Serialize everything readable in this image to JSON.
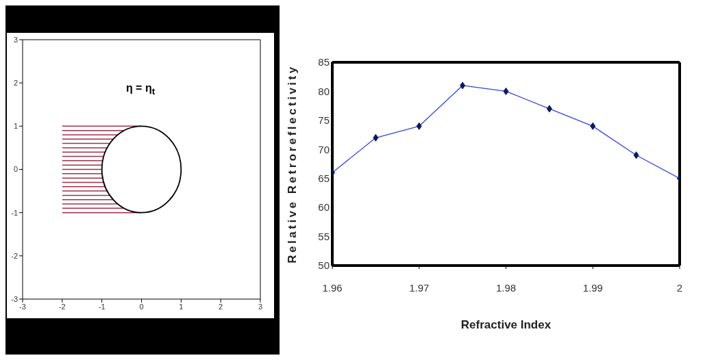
{
  "chart_data": [
    {
      "type": "line",
      "xlim": [
        -3,
        3
      ],
      "ylim": [
        -3,
        3
      ],
      "xticks": [
        -3,
        -2,
        -1,
        0,
        1,
        2,
        3
      ],
      "yticks": [
        -3,
        -2,
        -1,
        0,
        1,
        2,
        3
      ],
      "marker": "none",
      "annotations": [
        "η = η$_{t}$"
      ],
      "series": [
        {
          "color": "#a0304a",
          "x": [
            -2,
            0
          ],
          "values": [
            1,
            1
          ]
        },
        {
          "color": "#a0304a",
          "x": [
            -2,
            -0.44
          ],
          "values": [
            0.9,
            0.9
          ]
        },
        {
          "color": "#a0304a",
          "x": [
            -2,
            -0.6
          ],
          "values": [
            0.8,
            0.8
          ]
        },
        {
          "color": "#a0304a",
          "x": [
            -2,
            -0.71
          ],
          "values": [
            0.7,
            0.7
          ]
        },
        {
          "color": "#a0304a",
          "x": [
            -2,
            -0.8
          ],
          "values": [
            0.6,
            0.6
          ]
        },
        {
          "color": "#a0304a",
          "x": [
            -2,
            -0.87
          ],
          "values": [
            0.5,
            0.5
          ]
        },
        {
          "color": "#a0304a",
          "x": [
            -2,
            -0.92
          ],
          "values": [
            0.4,
            0.4
          ]
        },
        {
          "color": "#a0304a",
          "x": [
            -2,
            -0.95
          ],
          "values": [
            0.3,
            0.3
          ]
        },
        {
          "color": "#a0304a",
          "x": [
            -2,
            -0.98
          ],
          "values": [
            0.2,
            0.2
          ]
        },
        {
          "color": "#a0304a",
          "x": [
            -2,
            -0.99
          ],
          "values": [
            0.1,
            0.1
          ]
        },
        {
          "color": "#a0304a",
          "x": [
            -2,
            -1
          ],
          "values": [
            0,
            0
          ]
        },
        {
          "color": "#a0304a",
          "x": [
            -2,
            -0.99
          ],
          "values": [
            -0.1,
            -0.1
          ]
        },
        {
          "color": "#a0304a",
          "x": [
            -2,
            -0.98
          ],
          "values": [
            -0.2,
            -0.2
          ]
        },
        {
          "color": "#a0304a",
          "x": [
            -2,
            -0.95
          ],
          "values": [
            -0.3,
            -0.3
          ]
        },
        {
          "color": "#a0304a",
          "x": [
            -2,
            -0.92
          ],
          "values": [
            -0.4,
            -0.4
          ]
        },
        {
          "color": "#a0304a",
          "x": [
            -2,
            -0.87
          ],
          "values": [
            -0.5,
            -0.5
          ]
        },
        {
          "color": "#a0304a",
          "x": [
            -2,
            -0.8
          ],
          "values": [
            -0.6,
            -0.6
          ]
        },
        {
          "color": "#a0304a",
          "x": [
            -2,
            -0.71
          ],
          "values": [
            -0.7,
            -0.7
          ]
        },
        {
          "color": "#a0304a",
          "x": [
            -2,
            -0.6
          ],
          "values": [
            -0.8,
            -0.8
          ]
        },
        {
          "color": "#a0304a",
          "x": [
            -2,
            -0.44
          ],
          "values": [
            -0.9,
            -0.9
          ]
        },
        {
          "color": "#a0304a",
          "x": [
            -2,
            0
          ],
          "values": [
            -1,
            -1
          ]
        }
      ]
    },
    {
      "type": "line",
      "xlabel": "Refractive Index",
      "ylabel": "Relative Retroreflectivity",
      "x": [
        1.96,
        1.965,
        1.97,
        1.975,
        1.98,
        1.985,
        1.99,
        1.995,
        2
      ],
      "xlim": [
        1.96,
        2
      ],
      "ylim": [
        50,
        85
      ],
      "xticks": [
        1.96,
        1.97,
        1.98,
        1.99,
        2
      ],
      "yticks": [
        50,
        55,
        60,
        65,
        70,
        75,
        80,
        85
      ],
      "marker": "diamond",
      "series": [
        {
          "color": "#3344dd",
          "values": [
            66,
            72,
            74,
            81,
            80,
            77,
            74,
            69,
            65
          ]
        }
      ]
    }
  ]
}
